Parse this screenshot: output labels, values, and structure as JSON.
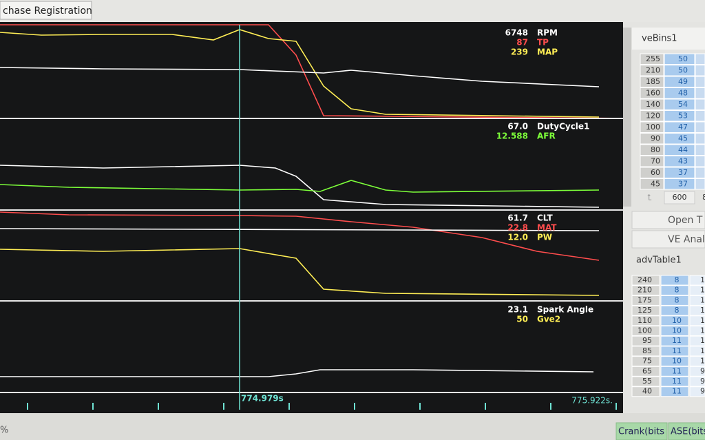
{
  "tab": "chase Registration",
  "panels": [
    {
      "readouts": [
        {
          "value": "6748",
          "name": "RPM",
          "color": "#ffffff"
        },
        {
          "value": "87",
          "name": "TP",
          "color": "#ff4d4d"
        },
        {
          "value": "239",
          "name": "MAP",
          "color": "#ffee55"
        }
      ]
    },
    {
      "readouts": [
        {
          "value": "67.0",
          "name": "DutyCycle1",
          "color": "#ffffff"
        },
        {
          "value": "12.588",
          "name": "AFR",
          "color": "#7dff3a"
        }
      ]
    },
    {
      "readouts": [
        {
          "value": "61.7",
          "name": "CLT",
          "color": "#ffffff"
        },
        {
          "value": "22.8",
          "name": "MAT",
          "color": "#ff4d4d"
        },
        {
          "value": "12.0",
          "name": "PW",
          "color": "#ffee55"
        }
      ]
    },
    {
      "readouts": [
        {
          "value": "23.1",
          "name": "Spark Angle",
          "color": "#ffffff"
        },
        {
          "value": "50",
          "name": "Gve2",
          "color": "#ffee55"
        }
      ]
    }
  ],
  "cursor_time": "774.979s",
  "end_time": "775.922s.",
  "ve_table": {
    "title": "veBins1",
    "rows": [
      [
        "255",
        "50"
      ],
      [
        "210",
        "50"
      ],
      [
        "185",
        "49"
      ],
      [
        "160",
        "48"
      ],
      [
        "140",
        "54"
      ],
      [
        "120",
        "53"
      ],
      [
        "100",
        "47"
      ],
      [
        "90",
        "45"
      ],
      [
        "80",
        "44"
      ],
      [
        "70",
        "43"
      ],
      [
        "60",
        "37"
      ],
      [
        "45",
        "37"
      ]
    ],
    "footer": [
      "600",
      "8"
    ]
  },
  "buttons": [
    "Open T",
    "VE Anal"
  ],
  "adv_table": {
    "title": "advTable1",
    "rows": [
      [
        "240",
        "8",
        "1"
      ],
      [
        "210",
        "8",
        "1"
      ],
      [
        "175",
        "8",
        "1"
      ],
      [
        "125",
        "8",
        "1"
      ],
      [
        "110",
        "10",
        "1"
      ],
      [
        "100",
        "10",
        "1"
      ],
      [
        "95",
        "11",
        "1"
      ],
      [
        "85",
        "11",
        "1"
      ],
      [
        "75",
        "10",
        "1"
      ],
      [
        "65",
        "11",
        "9"
      ],
      [
        "55",
        "11",
        "9"
      ],
      [
        "40",
        "11",
        "9"
      ]
    ]
  },
  "status": {
    "left": "%",
    "indicators": [
      "Crank(bits",
      "ASE(bits"
    ]
  }
}
